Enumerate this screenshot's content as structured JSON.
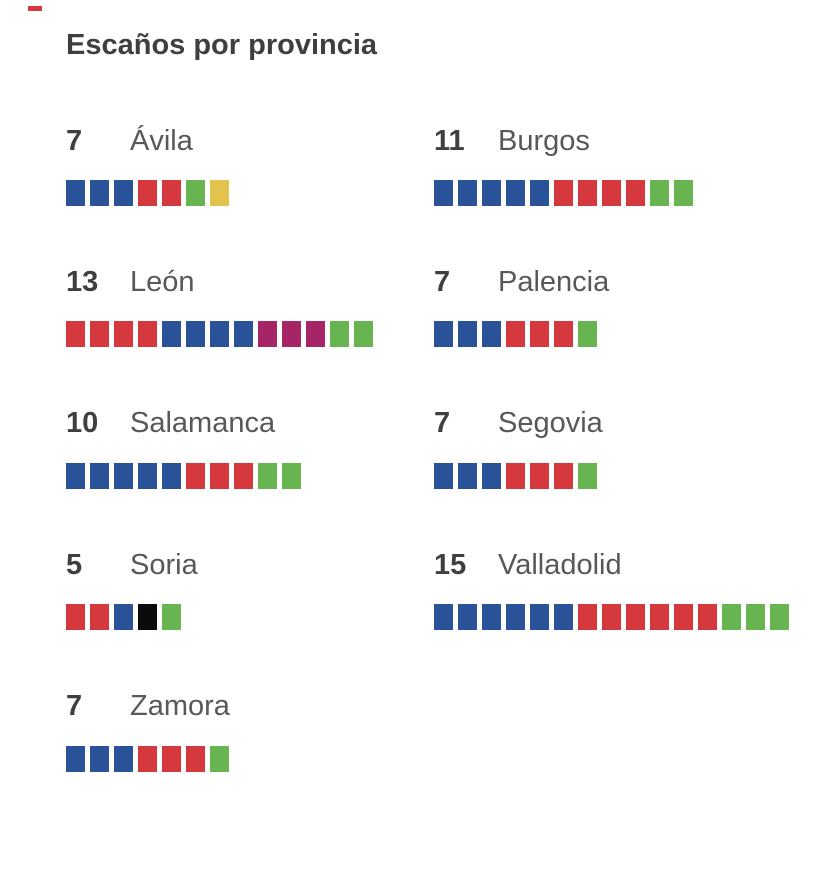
{
  "page": {
    "title": "Escaños por provincia"
  },
  "chart_data": {
    "type": "seat-strip",
    "title": "Escaños por provincia",
    "unit": "escaños",
    "legend_position": "none",
    "palette": {
      "blue": "#2a5298",
      "red": "#d5393d",
      "green": "#68b450",
      "yellow": "#e3c24d",
      "magenta": "#a52567",
      "black": "#0b0b0b"
    },
    "provinces": [
      {
        "name": "Ávila",
        "total": 7,
        "segments": [
          [
            "blue",
            3
          ],
          [
            "red",
            2
          ],
          [
            "green",
            1
          ],
          [
            "yellow",
            1
          ]
        ]
      },
      {
        "name": "Burgos",
        "total": 11,
        "segments": [
          [
            "blue",
            5
          ],
          [
            "red",
            4
          ],
          [
            "green",
            2
          ]
        ]
      },
      {
        "name": "León",
        "total": 13,
        "segments": [
          [
            "red",
            4
          ],
          [
            "blue",
            4
          ],
          [
            "magenta",
            3
          ],
          [
            "green",
            2
          ]
        ]
      },
      {
        "name": "Palencia",
        "total": 7,
        "segments": [
          [
            "blue",
            3
          ],
          [
            "red",
            3
          ],
          [
            "green",
            1
          ]
        ]
      },
      {
        "name": "Salamanca",
        "total": 10,
        "segments": [
          [
            "blue",
            5
          ],
          [
            "red",
            3
          ],
          [
            "green",
            2
          ]
        ]
      },
      {
        "name": "Segovia",
        "total": 7,
        "segments": [
          [
            "blue",
            3
          ],
          [
            "red",
            3
          ],
          [
            "green",
            1
          ]
        ]
      },
      {
        "name": "Soria",
        "total": 5,
        "segments": [
          [
            "red",
            2
          ],
          [
            "blue",
            1
          ],
          [
            "black",
            1
          ],
          [
            "green",
            1
          ]
        ]
      },
      {
        "name": "Valladolid",
        "total": 15,
        "segments": [
          [
            "blue",
            6
          ],
          [
            "red",
            6
          ],
          [
            "green",
            3
          ]
        ]
      },
      {
        "name": "Zamora",
        "total": 7,
        "segments": [
          [
            "blue",
            3
          ],
          [
            "red",
            3
          ],
          [
            "green",
            1
          ]
        ]
      }
    ]
  }
}
